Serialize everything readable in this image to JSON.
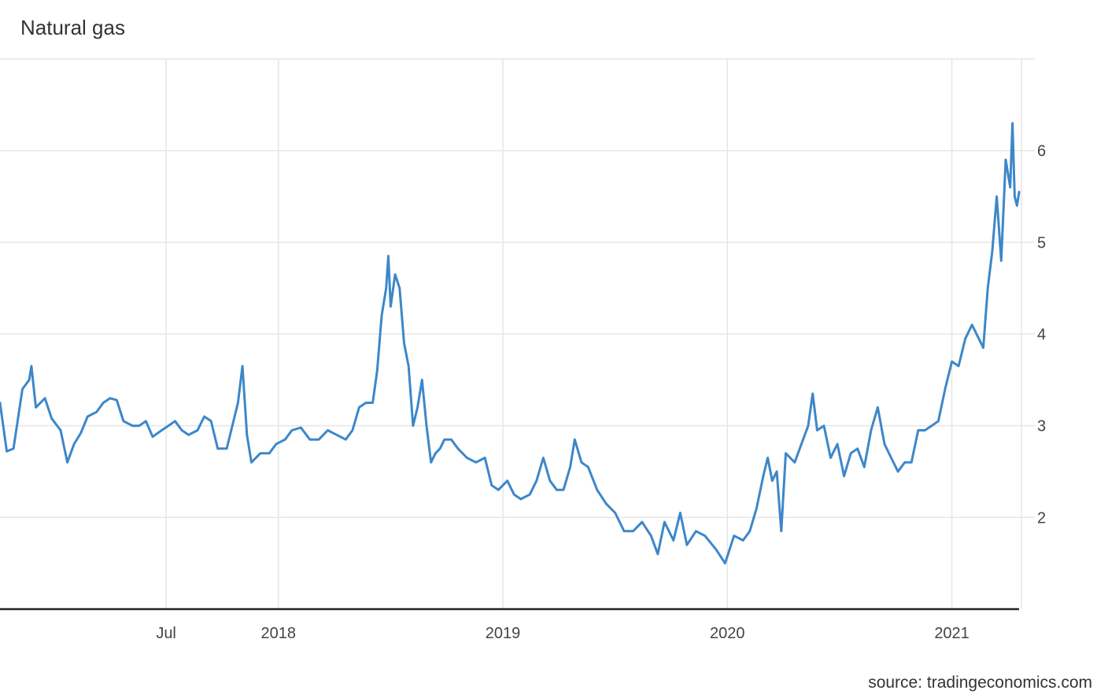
{
  "chart_data": {
    "type": "line",
    "title": "Natural gas",
    "source": "source: tradingeconomics.com",
    "xlabel": "",
    "ylabel": "",
    "x_ticks": [
      {
        "label": "Jul",
        "x": 2017.5
      },
      {
        "label": "2018",
        "x": 2018.0
      },
      {
        "label": "2019",
        "x": 2019.0
      },
      {
        "label": "2020",
        "x": 2020.0
      },
      {
        "label": "2021",
        "x": 2021.0
      }
    ],
    "y_ticks": [
      2,
      3,
      4,
      5,
      6
    ],
    "xlim": [
      2016.76,
      2021.31
    ],
    "ylim": [
      1,
      7
    ],
    "grid": true,
    "line_color": "#3d87c9",
    "series": [
      {
        "name": "",
        "points": [
          [
            2016.76,
            3.25
          ],
          [
            2016.79,
            2.72
          ],
          [
            2016.82,
            2.75
          ],
          [
            2016.86,
            3.4
          ],
          [
            2016.89,
            3.5
          ],
          [
            2016.9,
            3.65
          ],
          [
            2016.92,
            3.2
          ],
          [
            2016.96,
            3.3
          ],
          [
            2016.99,
            3.08
          ],
          [
            2017.03,
            2.95
          ],
          [
            2017.06,
            2.6
          ],
          [
            2017.09,
            2.8
          ],
          [
            2017.12,
            2.92
          ],
          [
            2017.15,
            3.1
          ],
          [
            2017.19,
            3.15
          ],
          [
            2017.22,
            3.25
          ],
          [
            2017.25,
            3.3
          ],
          [
            2017.28,
            3.28
          ],
          [
            2017.31,
            3.05
          ],
          [
            2017.35,
            3.0
          ],
          [
            2017.38,
            3.0
          ],
          [
            2017.41,
            3.05
          ],
          [
            2017.44,
            2.88
          ],
          [
            2017.48,
            2.95
          ],
          [
            2017.51,
            3.0
          ],
          [
            2017.54,
            3.05
          ],
          [
            2017.57,
            2.95
          ],
          [
            2017.6,
            2.9
          ],
          [
            2017.64,
            2.95
          ],
          [
            2017.67,
            3.1
          ],
          [
            2017.7,
            3.05
          ],
          [
            2017.73,
            2.75
          ],
          [
            2017.77,
            2.75
          ],
          [
            2017.8,
            3.05
          ],
          [
            2017.82,
            3.25
          ],
          [
            2017.84,
            3.65
          ],
          [
            2017.86,
            2.9
          ],
          [
            2017.88,
            2.6
          ],
          [
            2017.92,
            2.7
          ],
          [
            2017.96,
            2.7
          ],
          [
            2017.99,
            2.8
          ],
          [
            2018.03,
            2.85
          ],
          [
            2018.06,
            2.95
          ],
          [
            2018.1,
            2.98
          ],
          [
            2018.14,
            2.85
          ],
          [
            2018.18,
            2.85
          ],
          [
            2018.22,
            2.95
          ],
          [
            2018.26,
            2.9
          ],
          [
            2018.3,
            2.85
          ],
          [
            2018.33,
            2.95
          ],
          [
            2018.36,
            3.2
          ],
          [
            2018.39,
            3.25
          ],
          [
            2018.42,
            3.25
          ],
          [
            2018.44,
            3.6
          ],
          [
            2018.46,
            4.2
          ],
          [
            2018.48,
            4.5
          ],
          [
            2018.49,
            4.85
          ],
          [
            2018.5,
            4.3
          ],
          [
            2018.52,
            4.65
          ],
          [
            2018.54,
            4.5
          ],
          [
            2018.56,
            3.9
          ],
          [
            2018.58,
            3.65
          ],
          [
            2018.6,
            3.0
          ],
          [
            2018.62,
            3.2
          ],
          [
            2018.64,
            3.5
          ],
          [
            2018.66,
            3.0
          ],
          [
            2018.68,
            2.6
          ],
          [
            2018.7,
            2.7
          ],
          [
            2018.72,
            2.75
          ],
          [
            2018.74,
            2.85
          ],
          [
            2018.77,
            2.85
          ],
          [
            2018.8,
            2.75
          ],
          [
            2018.84,
            2.65
          ],
          [
            2018.88,
            2.6
          ],
          [
            2018.92,
            2.65
          ],
          [
            2018.95,
            2.35
          ],
          [
            2018.98,
            2.3
          ],
          [
            2019.02,
            2.4
          ],
          [
            2019.05,
            2.25
          ],
          [
            2019.08,
            2.2
          ],
          [
            2019.12,
            2.25
          ],
          [
            2019.15,
            2.4
          ],
          [
            2019.18,
            2.65
          ],
          [
            2019.21,
            2.4
          ],
          [
            2019.24,
            2.3
          ],
          [
            2019.27,
            2.3
          ],
          [
            2019.3,
            2.55
          ],
          [
            2019.32,
            2.85
          ],
          [
            2019.35,
            2.6
          ],
          [
            2019.38,
            2.55
          ],
          [
            2019.42,
            2.3
          ],
          [
            2019.46,
            2.15
          ],
          [
            2019.5,
            2.05
          ],
          [
            2019.54,
            1.85
          ],
          [
            2019.58,
            1.85
          ],
          [
            2019.62,
            1.95
          ],
          [
            2019.66,
            1.8
          ],
          [
            2019.69,
            1.6
          ],
          [
            2019.72,
            1.95
          ],
          [
            2019.76,
            1.75
          ],
          [
            2019.79,
            2.05
          ],
          [
            2019.82,
            1.7
          ],
          [
            2019.86,
            1.85
          ],
          [
            2019.9,
            1.8
          ],
          [
            2019.95,
            1.65
          ],
          [
            2019.99,
            1.5
          ],
          [
            2020.03,
            1.8
          ],
          [
            2020.07,
            1.75
          ],
          [
            2020.1,
            1.85
          ],
          [
            2020.13,
            2.1
          ],
          [
            2020.16,
            2.45
          ],
          [
            2020.18,
            2.65
          ],
          [
            2020.2,
            2.4
          ],
          [
            2020.22,
            2.5
          ],
          [
            2020.24,
            1.85
          ],
          [
            2020.26,
            2.7
          ],
          [
            2020.3,
            2.6
          ],
          [
            2020.33,
            2.8
          ],
          [
            2020.36,
            3.0
          ],
          [
            2020.38,
            3.35
          ],
          [
            2020.4,
            2.95
          ],
          [
            2020.43,
            3.0
          ],
          [
            2020.46,
            2.65
          ],
          [
            2020.49,
            2.8
          ],
          [
            2020.52,
            2.45
          ],
          [
            2020.55,
            2.7
          ],
          [
            2020.58,
            2.75
          ],
          [
            2020.61,
            2.55
          ],
          [
            2020.64,
            2.95
          ],
          [
            2020.67,
            3.2
          ],
          [
            2020.7,
            2.8
          ],
          [
            2020.73,
            2.65
          ],
          [
            2020.76,
            2.5
          ],
          [
            2020.79,
            2.6
          ],
          [
            2020.82,
            2.6
          ],
          [
            2020.85,
            2.95
          ],
          [
            2020.88,
            2.95
          ],
          [
            2020.91,
            3.0
          ],
          [
            2020.94,
            3.05
          ],
          [
            2020.97,
            3.4
          ],
          [
            2021.0,
            3.7
          ],
          [
            2021.03,
            3.65
          ],
          [
            2021.06,
            3.95
          ],
          [
            2021.09,
            4.1
          ],
          [
            2021.12,
            3.95
          ],
          [
            2021.14,
            3.85
          ],
          [
            2021.16,
            4.5
          ],
          [
            2021.18,
            4.9
          ],
          [
            2021.2,
            5.5
          ],
          [
            2021.22,
            4.8
          ],
          [
            2021.24,
            5.9
          ],
          [
            2021.26,
            5.6
          ],
          [
            2021.27,
            6.3
          ],
          [
            2021.28,
            5.5
          ],
          [
            2021.29,
            5.4
          ],
          [
            2021.3,
            5.55
          ]
        ]
      }
    ]
  }
}
